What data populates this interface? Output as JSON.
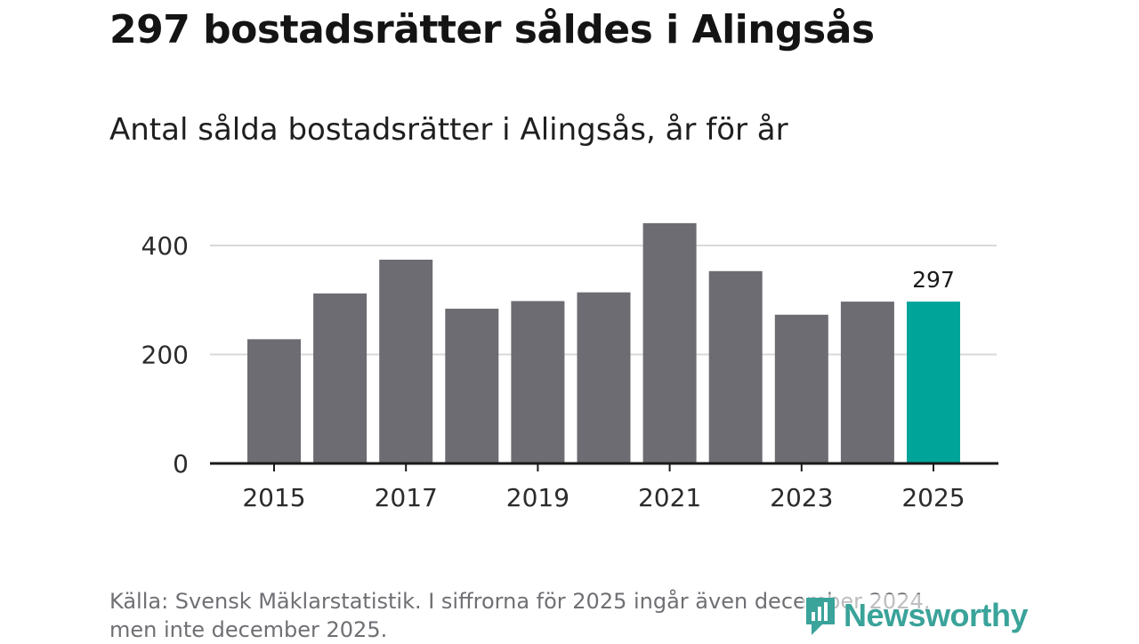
{
  "title": "297 bostadsrätter såldes i Alingsås",
  "subtitle": "Antal sålda bostadsrätter i Alingsås, år för år",
  "source_line1": "Källa: Svensk Mäklarstatistik. I siffrorna för 2025 ingår även december 2024,",
  "source_line2": "men inte december 2025.",
  "brand": "Newsworthy",
  "colors": {
    "bar": "#6d6c72",
    "highlight": "#00a499",
    "grid": "#d9d9d9",
    "axis": "#1a1a1a",
    "brand": "#3aa39a"
  },
  "chart_data": {
    "type": "bar",
    "categories": [
      "2015",
      "2016",
      "2017",
      "2018",
      "2019",
      "2020",
      "2021",
      "2022",
      "2023",
      "2024",
      "2025"
    ],
    "values": [
      228,
      312,
      374,
      284,
      298,
      314,
      441,
      353,
      273,
      297,
      297
    ],
    "highlight_index": 10,
    "data_labels": [
      {
        "index": 10,
        "text": "297"
      }
    ],
    "x_tick_labels": [
      "2015",
      "2017",
      "2019",
      "2021",
      "2023",
      "2025"
    ],
    "y_ticks": [
      0,
      200,
      400
    ],
    "y_tick_labels": [
      "0",
      "200",
      "400"
    ],
    "ylim": [
      0,
      460
    ],
    "grid": true,
    "xlabel": "",
    "ylabel": ""
  }
}
